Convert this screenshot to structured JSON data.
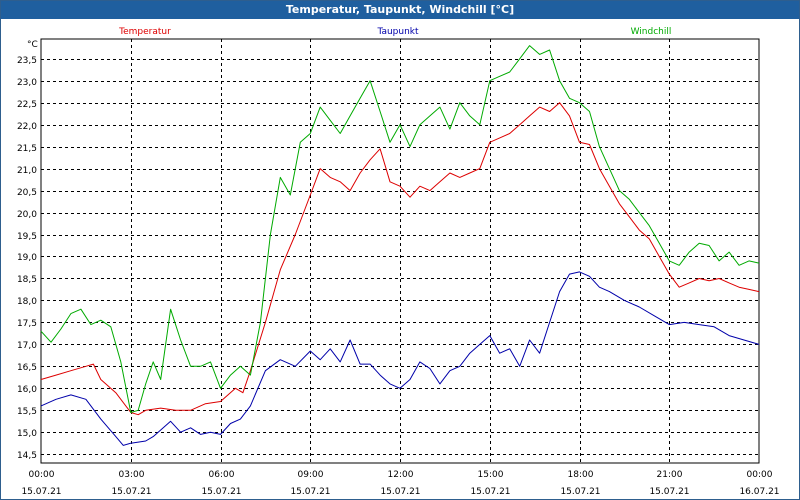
{
  "window": {
    "title": "Temperatur, Taupunkt, Windchill [°C]"
  },
  "colors": {
    "temperatur": "#dd0000",
    "taupunkt": "#0000aa",
    "windchill": "#00aa00",
    "grid": "#000000",
    "titlebar": "#1f5f9f"
  },
  "chart_data": {
    "type": "line",
    "title": "Temperatur, Taupunkt, Windchill [°C]",
    "unit": "°C",
    "grid": true,
    "legend": "top",
    "xlim": [
      "15.07.21 00:00",
      "16.07.21 00:00"
    ],
    "ylim": [
      14.3,
      23.95
    ],
    "x_ticks": [
      {
        "time": "00:00",
        "date": "15.07.21"
      },
      {
        "time": "03:00",
        "date": "15.07.21"
      },
      {
        "time": "06:00",
        "date": "15.07.21"
      },
      {
        "time": "09:00",
        "date": "15.07.21"
      },
      {
        "time": "12:00",
        "date": "15.07.21"
      },
      {
        "time": "15:00",
        "date": "15.07.21"
      },
      {
        "time": "18:00",
        "date": "15.07.21"
      },
      {
        "time": "21:00",
        "date": "15.07.21"
      },
      {
        "time": "00:00",
        "date": "16.07.21"
      }
    ],
    "y_ticks": [
      "14,5",
      "15,0",
      "15,5",
      "16,0",
      "16,5",
      "17,0",
      "17,5",
      "18,0",
      "18,5",
      "19,0",
      "19,5",
      "20,0",
      "20,5",
      "21,0",
      "21,5",
      "22,0",
      "22,5",
      "23,0",
      "23,5"
    ],
    "series": [
      {
        "name": "Temperatur",
        "color": "#dd0000",
        "points": [
          [
            "00:00",
            16.2
          ],
          [
            "00:30",
            16.3
          ],
          [
            "01:00",
            16.4
          ],
          [
            "01:30",
            16.5
          ],
          [
            "01:45",
            16.55
          ],
          [
            "02:00",
            16.2
          ],
          [
            "02:30",
            15.9
          ],
          [
            "03:00",
            15.45
          ],
          [
            "03:15",
            15.4
          ],
          [
            "03:30",
            15.5
          ],
          [
            "04:00",
            15.55
          ],
          [
            "04:30",
            15.5
          ],
          [
            "05:00",
            15.5
          ],
          [
            "05:30",
            15.65
          ],
          [
            "06:00",
            15.7
          ],
          [
            "06:30",
            16.0
          ],
          [
            "06:45",
            15.9
          ],
          [
            "07:00",
            16.4
          ],
          [
            "07:30",
            17.5
          ],
          [
            "08:00",
            18.7
          ],
          [
            "08:30",
            19.5
          ],
          [
            "09:00",
            20.4
          ],
          [
            "09:20",
            21.0
          ],
          [
            "09:40",
            20.8
          ],
          [
            "10:00",
            20.7
          ],
          [
            "10:20",
            20.5
          ],
          [
            "10:40",
            20.9
          ],
          [
            "11:00",
            21.2
          ],
          [
            "11:20",
            21.45
          ],
          [
            "11:40",
            20.7
          ],
          [
            "12:00",
            20.6
          ],
          [
            "12:20",
            20.35
          ],
          [
            "12:40",
            20.6
          ],
          [
            "13:00",
            20.5
          ],
          [
            "13:20",
            20.7
          ],
          [
            "13:40",
            20.9
          ],
          [
            "14:00",
            20.8
          ],
          [
            "14:20",
            20.9
          ],
          [
            "14:40",
            21.0
          ],
          [
            "15:00",
            21.6
          ],
          [
            "15:20",
            21.7
          ],
          [
            "15:40",
            21.8
          ],
          [
            "16:00",
            22.0
          ],
          [
            "16:20",
            22.2
          ],
          [
            "16:40",
            22.4
          ],
          [
            "17:00",
            22.3
          ],
          [
            "17:20",
            22.5
          ],
          [
            "17:40",
            22.2
          ],
          [
            "18:00",
            21.6
          ],
          [
            "18:20",
            21.55
          ],
          [
            "18:40",
            21.0
          ],
          [
            "19:00",
            20.6
          ],
          [
            "19:20",
            20.2
          ],
          [
            "19:40",
            19.9
          ],
          [
            "20:00",
            19.6
          ],
          [
            "20:20",
            19.4
          ],
          [
            "20:40",
            19.0
          ],
          [
            "21:00",
            18.6
          ],
          [
            "21:20",
            18.3
          ],
          [
            "21:40",
            18.4
          ],
          [
            "22:00",
            18.5
          ],
          [
            "22:20",
            18.45
          ],
          [
            "22:40",
            18.5
          ],
          [
            "23:00",
            18.4
          ],
          [
            "23:20",
            18.3
          ],
          [
            "23:40",
            18.25
          ],
          [
            "24:00",
            18.2
          ]
        ]
      },
      {
        "name": "Taupunkt",
        "color": "#0000aa",
        "points": [
          [
            "00:00",
            15.6
          ],
          [
            "00:30",
            15.75
          ],
          [
            "01:00",
            15.85
          ],
          [
            "01:30",
            15.75
          ],
          [
            "02:00",
            15.3
          ],
          [
            "02:30",
            14.9
          ],
          [
            "02:45",
            14.7
          ],
          [
            "03:00",
            14.75
          ],
          [
            "03:30",
            14.8
          ],
          [
            "03:45",
            14.9
          ],
          [
            "04:00",
            15.05
          ],
          [
            "04:20",
            15.25
          ],
          [
            "04:40",
            15.0
          ],
          [
            "05:00",
            15.1
          ],
          [
            "05:20",
            14.95
          ],
          [
            "05:40",
            15.0
          ],
          [
            "06:00",
            14.95
          ],
          [
            "06:20",
            15.2
          ],
          [
            "06:40",
            15.3
          ],
          [
            "07:00",
            15.6
          ],
          [
            "07:30",
            16.4
          ],
          [
            "08:00",
            16.65
          ],
          [
            "08:30",
            16.5
          ],
          [
            "09:00",
            16.85
          ],
          [
            "09:20",
            16.65
          ],
          [
            "09:40",
            16.9
          ],
          [
            "10:00",
            16.6
          ],
          [
            "10:20",
            17.1
          ],
          [
            "10:40",
            16.55
          ],
          [
            "11:00",
            16.55
          ],
          [
            "11:20",
            16.3
          ],
          [
            "11:40",
            16.1
          ],
          [
            "12:00",
            16.0
          ],
          [
            "12:20",
            16.2
          ],
          [
            "12:40",
            16.6
          ],
          [
            "13:00",
            16.45
          ],
          [
            "13:20",
            16.1
          ],
          [
            "13:40",
            16.4
          ],
          [
            "14:00",
            16.5
          ],
          [
            "14:20",
            16.8
          ],
          [
            "14:40",
            17.0
          ],
          [
            "15:00",
            17.2
          ],
          [
            "15:20",
            16.8
          ],
          [
            "15:40",
            16.9
          ],
          [
            "16:00",
            16.5
          ],
          [
            "16:20",
            17.1
          ],
          [
            "16:40",
            16.8
          ],
          [
            "17:00",
            17.5
          ],
          [
            "17:20",
            18.2
          ],
          [
            "17:40",
            18.6
          ],
          [
            "18:00",
            18.65
          ],
          [
            "18:20",
            18.55
          ],
          [
            "18:40",
            18.3
          ],
          [
            "19:00",
            18.2
          ],
          [
            "19:30",
            18.0
          ],
          [
            "20:00",
            17.85
          ],
          [
            "20:30",
            17.65
          ],
          [
            "21:00",
            17.45
          ],
          [
            "21:30",
            17.5
          ],
          [
            "22:00",
            17.45
          ],
          [
            "22:30",
            17.4
          ],
          [
            "23:00",
            17.2
          ],
          [
            "23:30",
            17.1
          ],
          [
            "24:00",
            17.0
          ]
        ]
      },
      {
        "name": "Windchill",
        "color": "#00aa00",
        "points": [
          [
            "00:00",
            17.3
          ],
          [
            "00:20",
            17.05
          ],
          [
            "00:40",
            17.35
          ],
          [
            "01:00",
            17.7
          ],
          [
            "01:20",
            17.8
          ],
          [
            "01:40",
            17.45
          ],
          [
            "02:00",
            17.55
          ],
          [
            "02:20",
            17.4
          ],
          [
            "02:40",
            16.6
          ],
          [
            "03:00",
            15.45
          ],
          [
            "03:15",
            15.5
          ],
          [
            "03:30",
            16.1
          ],
          [
            "03:45",
            16.6
          ],
          [
            "04:00",
            16.2
          ],
          [
            "04:20",
            17.8
          ],
          [
            "04:40",
            17.1
          ],
          [
            "05:00",
            16.5
          ],
          [
            "05:20",
            16.5
          ],
          [
            "05:40",
            16.6
          ],
          [
            "06:00",
            16.0
          ],
          [
            "06:20",
            16.3
          ],
          [
            "06:40",
            16.5
          ],
          [
            "07:00",
            16.3
          ],
          [
            "07:20",
            17.5
          ],
          [
            "07:40",
            19.5
          ],
          [
            "08:00",
            20.8
          ],
          [
            "08:20",
            20.4
          ],
          [
            "08:40",
            21.6
          ],
          [
            "09:00",
            21.8
          ],
          [
            "09:20",
            22.4
          ],
          [
            "09:40",
            22.1
          ],
          [
            "10:00",
            21.8
          ],
          [
            "10:20",
            22.2
          ],
          [
            "10:40",
            22.6
          ],
          [
            "11:00",
            23.0
          ],
          [
            "11:20",
            22.3
          ],
          [
            "11:40",
            21.6
          ],
          [
            "12:00",
            22.0
          ],
          [
            "12:20",
            21.5
          ],
          [
            "12:40",
            22.0
          ],
          [
            "13:00",
            22.2
          ],
          [
            "13:20",
            22.4
          ],
          [
            "13:40",
            21.9
          ],
          [
            "14:00",
            22.5
          ],
          [
            "14:20",
            22.2
          ],
          [
            "14:40",
            22.0
          ],
          [
            "15:00",
            23.0
          ],
          [
            "15:20",
            23.1
          ],
          [
            "15:40",
            23.2
          ],
          [
            "16:00",
            23.5
          ],
          [
            "16:20",
            23.8
          ],
          [
            "16:40",
            23.6
          ],
          [
            "17:00",
            23.7
          ],
          [
            "17:20",
            23.0
          ],
          [
            "17:40",
            22.6
          ],
          [
            "18:00",
            22.5
          ],
          [
            "18:20",
            22.3
          ],
          [
            "18:40",
            21.5
          ],
          [
            "19:00",
            21.0
          ],
          [
            "19:20",
            20.5
          ],
          [
            "19:40",
            20.3
          ],
          [
            "20:00",
            20.0
          ],
          [
            "20:20",
            19.7
          ],
          [
            "20:40",
            19.3
          ],
          [
            "21:00",
            18.9
          ],
          [
            "21:20",
            18.8
          ],
          [
            "21:40",
            19.1
          ],
          [
            "22:00",
            19.3
          ],
          [
            "22:20",
            19.25
          ],
          [
            "22:40",
            18.9
          ],
          [
            "23:00",
            19.1
          ],
          [
            "23:20",
            18.8
          ],
          [
            "23:40",
            18.9
          ],
          [
            "24:00",
            18.85
          ]
        ]
      }
    ]
  }
}
